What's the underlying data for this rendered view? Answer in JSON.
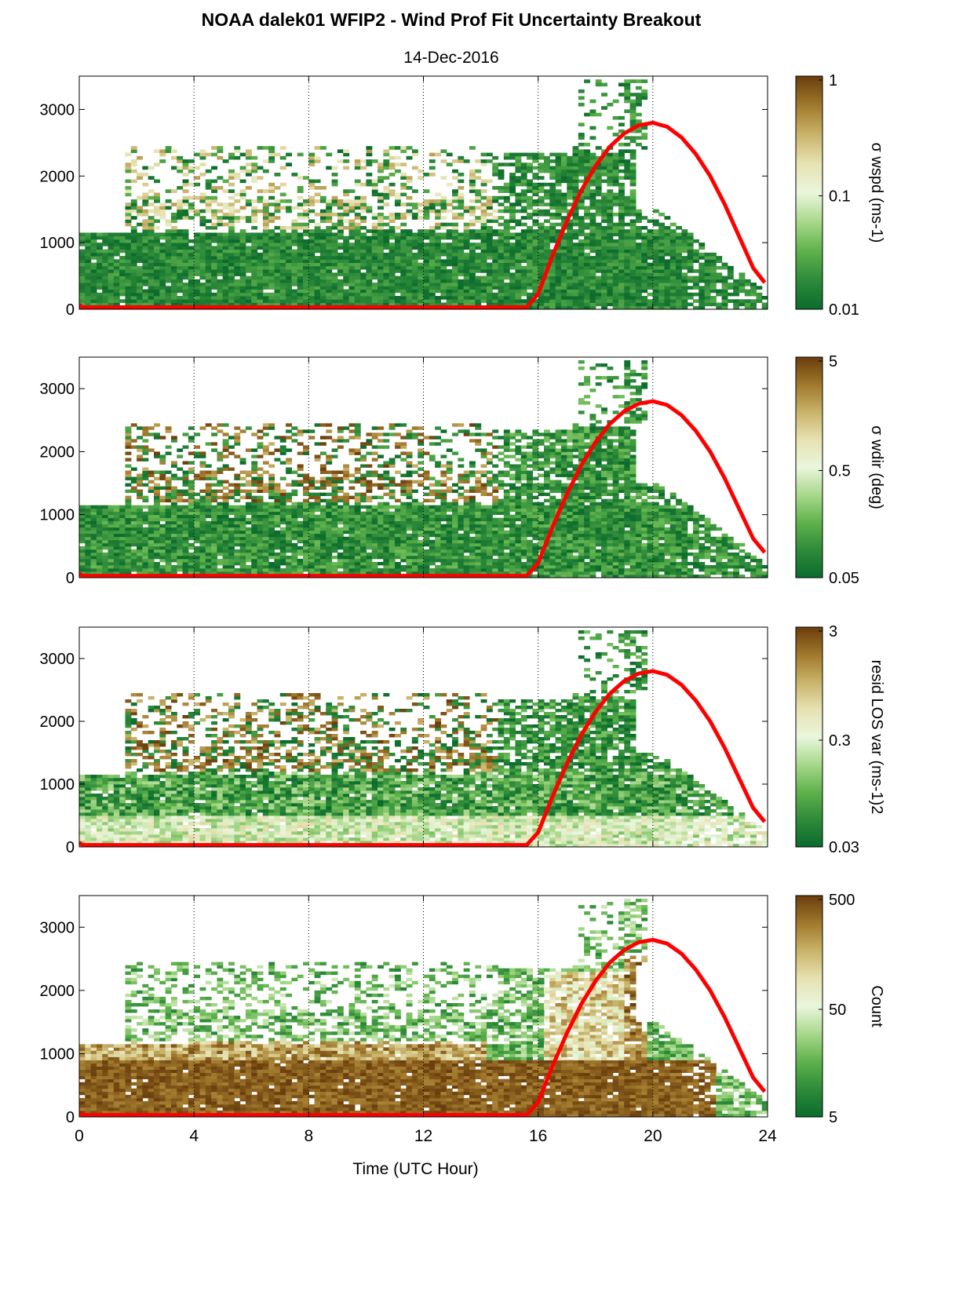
{
  "figure": {
    "title": "NOAA dalek01 WFIP2 - Wind Prof Fit Uncertainty Breakout",
    "subtitle": "14-Dec-2016",
    "xlabel": "Time (UTC Hour)"
  },
  "colors": {
    "curve": "#ff0000",
    "colormap": [
      "#0b6b2c",
      "#2e8b3a",
      "#5fb24c",
      "#a8d88b",
      "#eaf6dc",
      "#e6e2b2",
      "#c9b36a",
      "#a0782c",
      "#6a3d0c"
    ]
  },
  "chart_data": [
    {
      "type": "heatmap",
      "title": "",
      "ylim": [
        0,
        3500
      ],
      "xlim": [
        0,
        24
      ],
      "xticks": [
        0,
        4,
        8,
        12,
        16,
        20,
        24
      ],
      "yticks": [
        0,
        1000,
        2000,
        3000
      ],
      "grid": "vertical dotted at x ticks",
      "colorbar": {
        "label": "σ wspd (ms-1)",
        "ticks": [
          "1",
          "0.1",
          "0.01"
        ],
        "scale": "log",
        "range": [
          0.01,
          1
        ]
      },
      "red_curve": {
        "x": [
          0,
          0.1,
          15.6,
          16,
          16.5,
          17,
          17.5,
          18,
          18.5,
          19,
          19.5,
          20,
          20.5,
          21,
          21.5,
          22,
          22.5,
          23,
          23.5,
          23.9
        ],
        "y": [
          70,
          30,
          30,
          230,
          800,
          1320,
          1780,
          2150,
          2440,
          2640,
          2760,
          2800,
          2740,
          2580,
          2330,
          2000,
          1580,
          1100,
          620,
          400
        ]
      }
    },
    {
      "type": "heatmap",
      "ylim": [
        0,
        3500
      ],
      "xlim": [
        0,
        24
      ],
      "xticks": [
        0,
        4,
        8,
        12,
        16,
        20,
        24
      ],
      "yticks": [
        0,
        1000,
        2000,
        3000
      ],
      "colorbar": {
        "label": "σ wdir (deg)",
        "ticks": [
          "5",
          "0.5",
          "0.05"
        ],
        "scale": "log",
        "range": [
          0.05,
          5
        ]
      },
      "red_curve": {
        "x": [
          0,
          0.1,
          15.6,
          16,
          16.5,
          17,
          17.5,
          18,
          18.5,
          19,
          19.5,
          20,
          20.5,
          21,
          21.5,
          22,
          22.5,
          23,
          23.5,
          23.9
        ],
        "y": [
          70,
          30,
          30,
          230,
          800,
          1320,
          1780,
          2150,
          2440,
          2640,
          2760,
          2800,
          2740,
          2580,
          2330,
          2000,
          1580,
          1100,
          620,
          400
        ]
      }
    },
    {
      "type": "heatmap",
      "ylim": [
        0,
        3500
      ],
      "xlim": [
        0,
        24
      ],
      "xticks": [
        0,
        4,
        8,
        12,
        16,
        20,
        24
      ],
      "yticks": [
        0,
        1000,
        2000,
        3000
      ],
      "colorbar": {
        "label": "resid LOS var (ms-1)2",
        "ticks": [
          "3",
          "0.3",
          "0.03"
        ],
        "scale": "log",
        "range": [
          0.03,
          3
        ]
      },
      "red_curve": {
        "x": [
          0,
          0.1,
          15.6,
          16,
          16.5,
          17,
          17.5,
          18,
          18.5,
          19,
          19.5,
          20,
          20.5,
          21,
          21.5,
          22,
          22.5,
          23,
          23.5,
          23.9
        ],
        "y": [
          70,
          30,
          30,
          230,
          800,
          1320,
          1780,
          2150,
          2440,
          2640,
          2760,
          2800,
          2740,
          2580,
          2330,
          2000,
          1580,
          1100,
          620,
          400
        ]
      }
    },
    {
      "type": "heatmap",
      "ylim": [
        0,
        3500
      ],
      "xlim": [
        0,
        24
      ],
      "xticks": [
        0,
        4,
        8,
        12,
        16,
        20,
        24
      ],
      "yticks": [
        0,
        1000,
        2000,
        3000
      ],
      "colorbar": {
        "label": "Count",
        "ticks": [
          "500",
          "50",
          "5"
        ],
        "scale": "log",
        "range": [
          1,
          500
        ]
      },
      "red_curve": {
        "x": [
          0,
          0.1,
          15.6,
          16,
          16.5,
          17,
          17.5,
          18,
          18.5,
          19,
          19.5,
          20,
          20.5,
          21,
          21.5,
          22,
          22.5,
          23,
          23.5,
          23.9
        ],
        "y": [
          70,
          30,
          30,
          230,
          800,
          1320,
          1780,
          2150,
          2440,
          2640,
          2760,
          2800,
          2740,
          2580,
          2330,
          2000,
          1580,
          1100,
          620,
          400
        ]
      }
    }
  ]
}
